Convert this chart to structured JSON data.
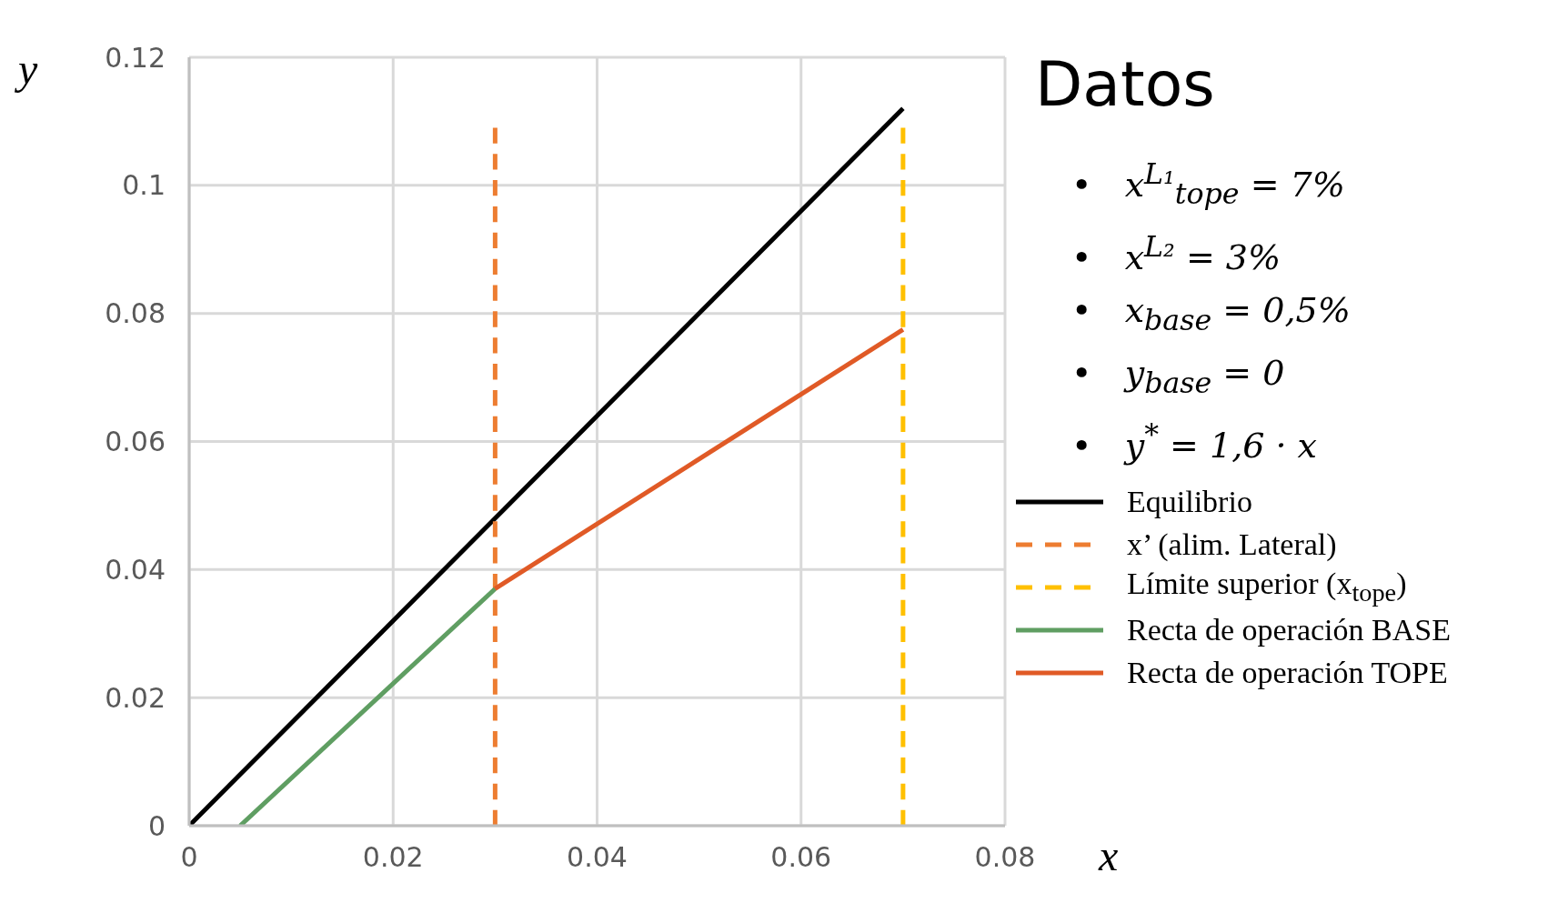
{
  "chart_data": {
    "type": "line",
    "xlabel": "x",
    "ylabel": "y",
    "xlim": [
      0,
      0.08
    ],
    "xticks": [
      0,
      0.02,
      0.04,
      0.06,
      0.08
    ],
    "ylim": [
      0,
      0.12
    ],
    "yticks": [
      0,
      0.02,
      0.04,
      0.06,
      0.08,
      0.1,
      0.12
    ],
    "grid": true,
    "legend": "right",
    "marker": "none",
    "series": [
      {
        "name": "Equilibrio",
        "color": "#000000",
        "x": [
          0,
          0.07
        ],
        "values": [
          0,
          0.112
        ]
      },
      {
        "name": "x’ (alim. Lateral)",
        "color": "#ed7d31",
        "line_style": "dashed",
        "x": [
          0.03,
          0.03
        ],
        "values": [
          0,
          0.109
        ]
      },
      {
        "name": "Límite superior (x$_{tope}$)",
        "color": "#ffc000",
        "line_style": "dashed",
        "x": [
          0.07,
          0.07
        ],
        "values": [
          0,
          0.109
        ]
      },
      {
        "name": "Recta de operación BASE",
        "color": "#5f9e62",
        "x": [
          0.005,
          0.03
        ],
        "values": [
          0,
          0.037
        ]
      },
      {
        "name": "Recta de operación TOPE",
        "color": "#e05a26",
        "x": [
          0.03,
          0.07
        ],
        "values": [
          0.037,
          0.0775
        ]
      }
    ],
    "annotations": [
      "Datos",
      "•   x$^{L₁}$$_{tope}$ = 7%",
      "•   x$^{L₂}$ = 3%",
      "•   x$_{base}$ = 0,5%",
      "•   y$_{base}$ = 0",
      "•   y$^{*}$ = 1,6 · x"
    ]
  }
}
